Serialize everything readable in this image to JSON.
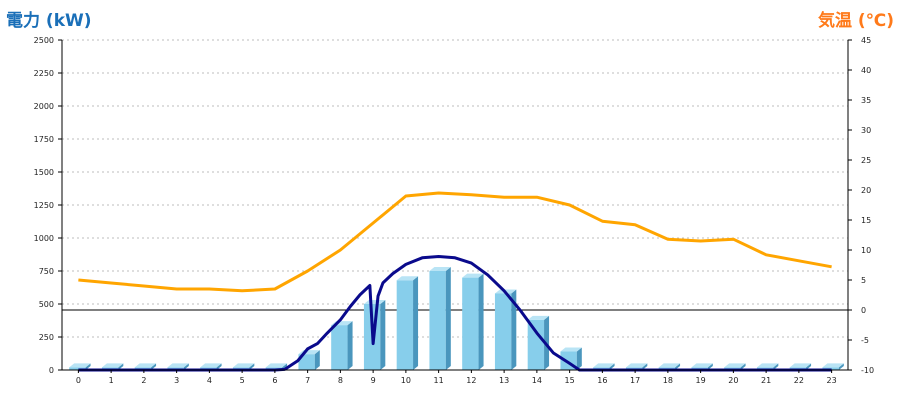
{
  "chart_data": {
    "type": "bar",
    "left_axis_title": "電力 (kW)",
    "right_axis_title": "気温 (℃)",
    "categories": [
      "0",
      "1",
      "2",
      "3",
      "4",
      "5",
      "6",
      "7",
      "8",
      "9",
      "10",
      "11",
      "12",
      "13",
      "14",
      "15",
      "16",
      "17",
      "18",
      "19",
      "20",
      "21",
      "22",
      "23"
    ],
    "y_left": {
      "range": [
        0,
        2500
      ],
      "ticks": [
        0,
        250,
        500,
        750,
        1000,
        1250,
        1500,
        1750,
        2000,
        2250,
        2500
      ]
    },
    "y_right": {
      "range": [
        -10,
        45
      ],
      "ticks": [
        -10,
        -5,
        0,
        5,
        10,
        15,
        20,
        25,
        30,
        35,
        40,
        45
      ]
    },
    "grid": true,
    "series": [
      {
        "type": "bar",
        "axis": "left",
        "color": "#87ceeb",
        "values": [
          20,
          20,
          20,
          20,
          20,
          20,
          20,
          120,
          340,
          500,
          680,
          750,
          700,
          580,
          380,
          140,
          20,
          20,
          20,
          20,
          20,
          20,
          20,
          20
        ]
      },
      {
        "type": "line",
        "axis": "right",
        "color": "#ffa500",
        "values": [
          5,
          4.5,
          4,
          3.5,
          3.5,
          3.2,
          3.5,
          6.5,
          10,
          14.5,
          19,
          19.5,
          19.2,
          18.8,
          18.8,
          17.5,
          14.8,
          14.2,
          11.8,
          11.5,
          11.8,
          9.2,
          8.2,
          7.2
        ]
      },
      {
        "type": "line",
        "axis": "left",
        "color": "#0a0a8c",
        "x": [
          0,
          1,
          2,
          3,
          4,
          5,
          6,
          6.3,
          6.7,
          7,
          7.3,
          7.6,
          8,
          8.3,
          8.6,
          8.9,
          9,
          9.15,
          9.3,
          9.6,
          10,
          10.5,
          11,
          11.5,
          12,
          12.5,
          13,
          13.5,
          14,
          14.5,
          15,
          15.3,
          15.6,
          16,
          17,
          18,
          19,
          20,
          21,
          22,
          23
        ],
        "values": [
          0,
          0,
          0,
          0,
          0,
          0,
          0,
          5,
          70,
          160,
          200,
          280,
          380,
          480,
          570,
          640,
          200,
          560,
          660,
          730,
          800,
          850,
          860,
          850,
          810,
          720,
          600,
          450,
          280,
          130,
          50,
          0,
          0,
          0,
          0,
          0,
          0,
          0,
          0,
          0,
          0
        ]
      }
    ]
  }
}
